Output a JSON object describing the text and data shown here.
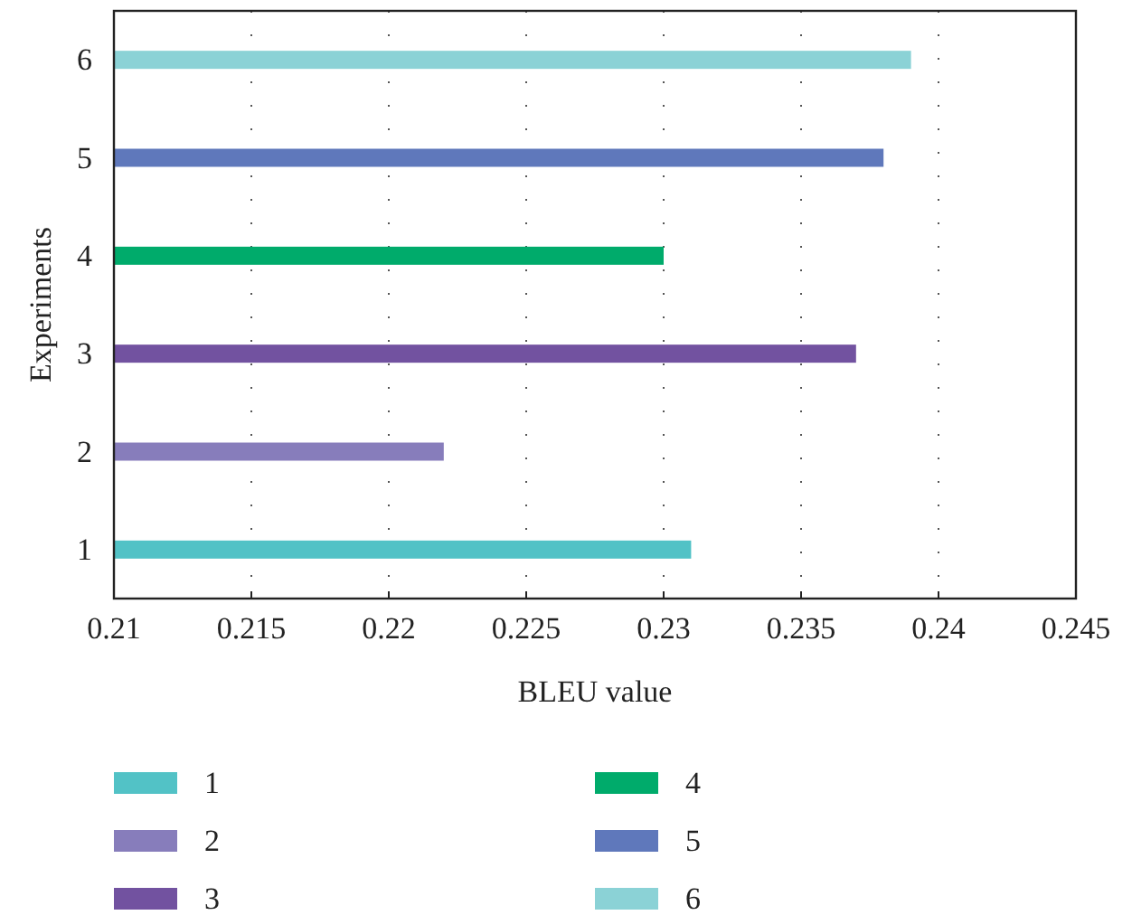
{
  "chart_data": {
    "type": "bar",
    "orientation": "horizontal",
    "xlabel": "BLEU value",
    "ylabel": "Experiments",
    "categories": [
      "6",
      "5",
      "4",
      "3",
      "2",
      "1"
    ],
    "series": [
      {
        "name": "1",
        "color": "#52c2c6",
        "values": [
          null,
          null,
          null,
          null,
          null,
          0.231
        ]
      },
      {
        "name": "2",
        "color": "#877dbb",
        "values": [
          null,
          null,
          null,
          null,
          0.222,
          null
        ]
      },
      {
        "name": "3",
        "color": "#7252a0",
        "values": [
          null,
          null,
          null,
          0.237,
          null,
          null
        ]
      },
      {
        "name": "4",
        "color": "#00ab6b",
        "values": [
          null,
          null,
          0.23,
          null,
          null,
          null
        ]
      },
      {
        "name": "5",
        "color": "#5f78bb",
        "values": [
          null,
          0.238,
          null,
          null,
          null,
          null
        ]
      },
      {
        "name": "6",
        "color": "#8bd2d6",
        "values": [
          0.239,
          null,
          null,
          null,
          null,
          null
        ]
      }
    ],
    "xlim": [
      0.21,
      0.245
    ],
    "xticks": [
      0.21,
      0.215,
      0.22,
      0.225,
      0.23,
      0.235,
      0.24,
      0.245
    ],
    "grid": "x",
    "legend": "bottom"
  }
}
